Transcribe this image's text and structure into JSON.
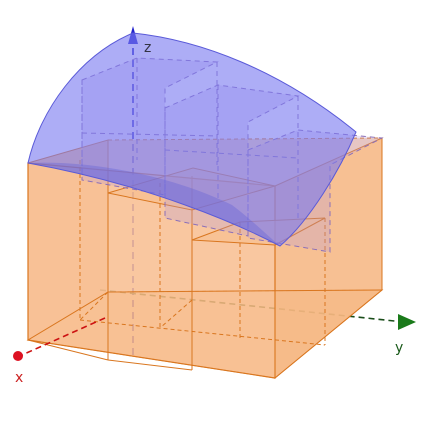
{
  "scene": {
    "axis_labels": {
      "x": "x",
      "y": "y",
      "z": "z"
    },
    "colors": {
      "background": "#ffffff",
      "surface_fill": "#7b7bf0",
      "surface_stroke": "#5a5ad8",
      "box_fill": "#f3a96b",
      "box_stroke": "#d9761f",
      "x_axis": "#cc1111",
      "y_axis": "#1a7a1a",
      "z_axis": "#2222cc"
    }
  }
}
